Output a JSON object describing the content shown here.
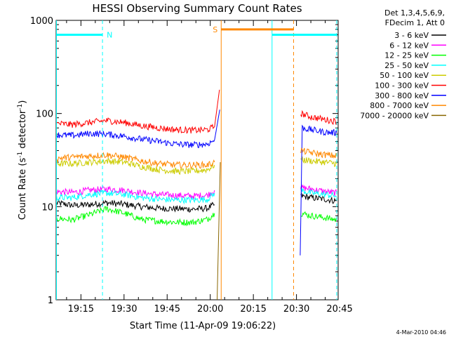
{
  "chart_data": {
    "type": "line",
    "title": "HESSI Observing Summary Count Rates",
    "xlabel": "Start Time (11-Apr-09 19:06:22)",
    "ylabel_main": "Count Rate (s",
    "ylabel_sup1": "-1",
    "ylabel_mid": " detector",
    "ylabel_sup2": "-1",
    "ylabel_end": ")",
    "yscale": "log",
    "ylim": [
      1,
      1000
    ],
    "xlim_minutes": [
      6.37,
      104.5
    ],
    "x_ticks": [
      {
        "label": "19:15",
        "minutes": 15
      },
      {
        "label": "19:30",
        "minutes": 30
      },
      {
        "label": "19:45",
        "minutes": 45
      },
      {
        "label": "20:00",
        "minutes": 60
      },
      {
        "label": "20:15",
        "minutes": 75
      },
      {
        "label": "20:30",
        "minutes": 90
      },
      {
        "label": "20:45",
        "minutes": 105
      }
    ],
    "y_ticks": [
      {
        "label": "1",
        "value": 1
      },
      {
        "label": "10",
        "value": 10
      },
      {
        "label": "100",
        "value": 100
      },
      {
        "label": "1000",
        "value": 1000
      }
    ],
    "legend_header": [
      "Det 1,3,4,5,6,9,",
      "FDecim 1, Att 0"
    ],
    "series": [
      {
        "name": "3 - 6 keV",
        "color": "#000000",
        "segments": [
          {
            "x": [
              6.5,
              12,
              18,
              24,
              30,
              36,
              42,
              48,
              54,
              59,
              61.5
            ],
            "y": [
              11,
              10.3,
              10.5,
              11,
              10.6,
              10,
              9.6,
              9.5,
              9.4,
              9.6,
              10.5
            ]
          },
          {
            "x": [
              91.5,
              95,
              100,
              104
            ],
            "y": [
              13,
              12.5,
              12,
              11.5
            ]
          }
        ]
      },
      {
        "name": "6 - 12 keV",
        "color": "#ff00ff",
        "segments": [
          {
            "x": [
              6.5,
              12,
              18,
              24,
              30,
              36,
              42,
              48,
              54,
              59,
              61.5
            ],
            "y": [
              14.5,
              14.2,
              15,
              15.5,
              15,
              14,
              13.5,
              13.2,
              13,
              13.3,
              15
            ]
          },
          {
            "x": [
              91.5,
              95,
              100,
              104
            ],
            "y": [
              16,
              15.5,
              14.5,
              14
            ]
          }
        ]
      },
      {
        "name": "12 - 25 keV",
        "color": "#00ff00",
        "segments": [
          {
            "x": [
              6.5,
              12,
              18,
              24,
              30,
              36,
              42,
              48,
              54,
              59,
              61.5
            ],
            "y": [
              7.5,
              7.2,
              8.2,
              9.5,
              8.5,
              7.3,
              7,
              6.8,
              6.8,
              7.3,
              8.5
            ]
          },
          {
            "x": [
              91.5,
              95,
              100,
              104
            ],
            "y": [
              8.5,
              8,
              7.6,
              7.2
            ]
          }
        ]
      },
      {
        "name": "25 - 50 keV",
        "color": "#00ffff",
        "segments": [
          {
            "x": [
              6.5,
              12,
              18,
              24,
              30,
              36,
              42,
              48,
              54,
              59,
              61.5
            ],
            "y": [
              12.5,
              12.5,
              13.5,
              14,
              13.5,
              12.5,
              12,
              11.8,
              11.8,
              12,
              14
            ]
          },
          {
            "x": [
              91.5,
              95,
              100,
              104
            ],
            "y": [
              15,
              14,
              13.5,
              13
            ]
          }
        ]
      },
      {
        "name": "50 - 100 keV",
        "color": "#cccc00",
        "segments": [
          {
            "x": [
              6.5,
              12,
              18,
              24,
              30,
              36,
              42,
              48,
              54,
              59,
              61.5
            ],
            "y": [
              29,
              29,
              30,
              31,
              30,
              27,
              25,
              24,
              24,
              25,
              28
            ]
          },
          {
            "x": [
              91.5,
              95,
              100,
              104
            ],
            "y": [
              32,
              31,
              30,
              29
            ]
          }
        ]
      },
      {
        "name": "100 - 300 keV",
        "color": "#ff0000",
        "segments": [
          {
            "x": [
              6.5,
              12,
              18,
              24,
              30,
              36,
              42,
              48,
              54,
              59,
              61.5,
              63.2
            ],
            "y": [
              78,
              76,
              80,
              84,
              80,
              74,
              70,
              67,
              66,
              67,
              72,
              180
            ]
          },
          {
            "x": [
              91.5,
              95,
              100,
              104
            ],
            "y": [
              100,
              92,
              86,
              82
            ]
          }
        ]
      },
      {
        "name": "300 - 800 keV",
        "color": "#0000ff",
        "segments": [
          {
            "x": [
              6.5,
              12,
              18,
              24,
              30,
              36,
              42,
              48,
              54,
              59,
              61.5,
              63.3
            ],
            "y": [
              59,
              58,
              61,
              60,
              57,
              53,
              50,
              47,
              46,
              47,
              52,
              110
            ]
          },
          {
            "x": [
              91.3,
              92,
              95,
              100,
              104
            ],
            "y": [
              3,
              70,
              67,
              63,
              62
            ]
          }
        ]
      },
      {
        "name": "800 - 7000 keV",
        "color": "#ff8800",
        "segments": [
          {
            "x": [
              6.5,
              12,
              18,
              24,
              30,
              36,
              42,
              48,
              54,
              59,
              61.5
            ],
            "y": [
              33,
              34,
              35,
              36,
              34,
              31,
              29,
              28,
              28,
              28,
              30
            ]
          },
          {
            "x": [
              91.5,
              95,
              100,
              104
            ],
            "y": [
              40,
              38,
              36,
              35
            ]
          }
        ]
      },
      {
        "name": "7000 - 20000 keV",
        "color": "#886600",
        "segments": [
          {
            "x": [
              62.4,
              63.5
            ],
            "y": [
              1,
              30
            ]
          }
        ]
      }
    ],
    "flags": [
      {
        "label": "N",
        "color": "#00ffff",
        "x_start": 6.4,
        "x_end": 22.5,
        "level": 700,
        "dashed_at": 22.5
      },
      {
        "label": "S",
        "color": "#ff8800",
        "x_start": 63.8,
        "x_end": 89.0,
        "level": 800,
        "dashed_at": 89.0
      },
      {
        "label": "",
        "color": "#00ffff",
        "x_start": 81.5,
        "x_end": 104.0,
        "level": 700,
        "dashed_at": 104.0
      }
    ],
    "region_lines": [
      {
        "color": "#00ffff",
        "x": 6.5
      },
      {
        "color": "#ff8800",
        "x": 63.8
      },
      {
        "color": "#00ffff",
        "x": 81.5
      }
    ]
  },
  "timestamp": "4-Mar-2010 04:46"
}
